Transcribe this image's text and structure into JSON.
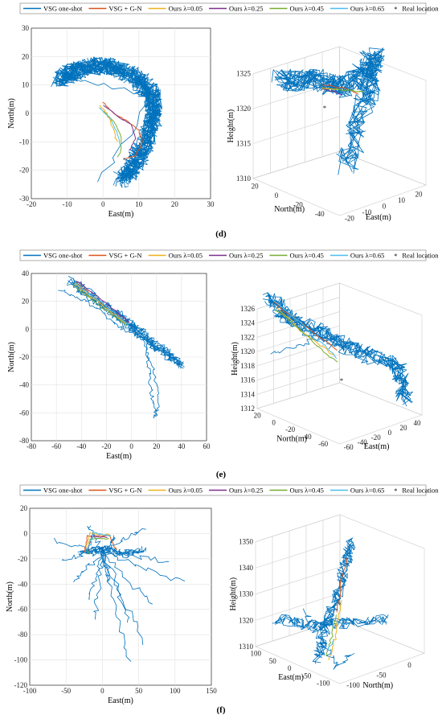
{
  "legend": {
    "entries": [
      {
        "label": "VSG one-shot",
        "color": "#0072BD",
        "type": "line"
      },
      {
        "label": "VSG + G-N",
        "color": "#D95319",
        "type": "line"
      },
      {
        "label": "Ours λ=0.05",
        "color": "#EDB120",
        "type": "line"
      },
      {
        "label": "Ours λ=0.25",
        "color": "#7E2F8E",
        "type": "line"
      },
      {
        "label": "Ours λ=0.45",
        "color": "#77AC30",
        "type": "line"
      },
      {
        "label": "Ours λ=0.65",
        "color": "#4DBEEE",
        "type": "line"
      },
      {
        "label": "Real location",
        "color": "#D95319",
        "type": "marker"
      }
    ]
  },
  "chart_data": [
    {
      "panel": "d",
      "view": "2d",
      "type": "line",
      "xlabel": "East(m)",
      "ylabel": "North(m)",
      "xlim": [
        -20,
        30
      ],
      "ylim": [
        -30,
        30
      ],
      "xticks": [
        "-20",
        "-10",
        "0",
        "10",
        "20",
        "30"
      ],
      "yticks": [
        "30",
        "20",
        "10",
        "0",
        "-10",
        "-20",
        "-30"
      ],
      "real_location": [
        6,
        -16
      ]
    },
    {
      "panel": "d",
      "view": "3d",
      "type": "line",
      "xlabel": "East(m)",
      "ylabel": "North(m)",
      "zlabel": "Height(m)",
      "zlim": [
        1310,
        1325
      ],
      "zticks": [
        "1325",
        "1320",
        "1315",
        "1310"
      ],
      "north_ticks": [
        "20",
        "0",
        "-20",
        "-40"
      ],
      "east_ticks": [
        "-20",
        "-10",
        "0",
        "10",
        "20"
      ]
    },
    {
      "panel": "e",
      "view": "2d",
      "type": "line",
      "xlabel": "East(m)",
      "ylabel": "North(m)",
      "xlim": [
        -80,
        60
      ],
      "ylim": [
        -80,
        40
      ],
      "xticks": [
        "-80",
        "-60",
        "-40",
        "-20",
        "0",
        "20",
        "40",
        "60"
      ],
      "yticks": [
        "40",
        "20",
        "0",
        "-20",
        "-40",
        "-60",
        "-80"
      ]
    },
    {
      "panel": "e",
      "view": "3d",
      "type": "line",
      "xlabel": "East(m)",
      "ylabel": "North(m)",
      "zlabel": "Height(m)",
      "zlim": [
        1312,
        1326
      ],
      "zticks": [
        "1326",
        "1324",
        "1322",
        "1320",
        "1318",
        "1316",
        "1314",
        "1312"
      ],
      "north_ticks": [
        "20",
        "0",
        "-20",
        "-40",
        "-60"
      ],
      "east_ticks": [
        "-60",
        "-40",
        "-20",
        "0",
        "20",
        "40"
      ]
    },
    {
      "panel": "f",
      "view": "2d",
      "type": "line",
      "xlabel": "East(m)",
      "ylabel": "North(m)",
      "xlim": [
        -100,
        150
      ],
      "ylim": [
        -120,
        20
      ],
      "xticks": [
        "-100",
        "-50",
        "0",
        "50",
        "100",
        "150"
      ],
      "yticks": [
        "20",
        "0",
        "-20",
        "-40",
        "-60",
        "-80",
        "-100",
        "-120"
      ]
    },
    {
      "panel": "f",
      "view": "3d",
      "type": "line",
      "xlabel": "East(m)",
      "ylabel": "North(m)",
      "zlabel": "Height(m)",
      "zlim": [
        1310,
        1350
      ],
      "zticks": [
        "1350",
        "1340",
        "1330",
        "1320",
        "1310"
      ],
      "east_ticks": [
        "100",
        "50",
        "0",
        "-50",
        "-100"
      ],
      "north_ticks": [
        "-100",
        "-50",
        "0"
      ]
    }
  ],
  "panel_labels": {
    "d": "(d)",
    "e": "(e)",
    "f": "(f)"
  }
}
